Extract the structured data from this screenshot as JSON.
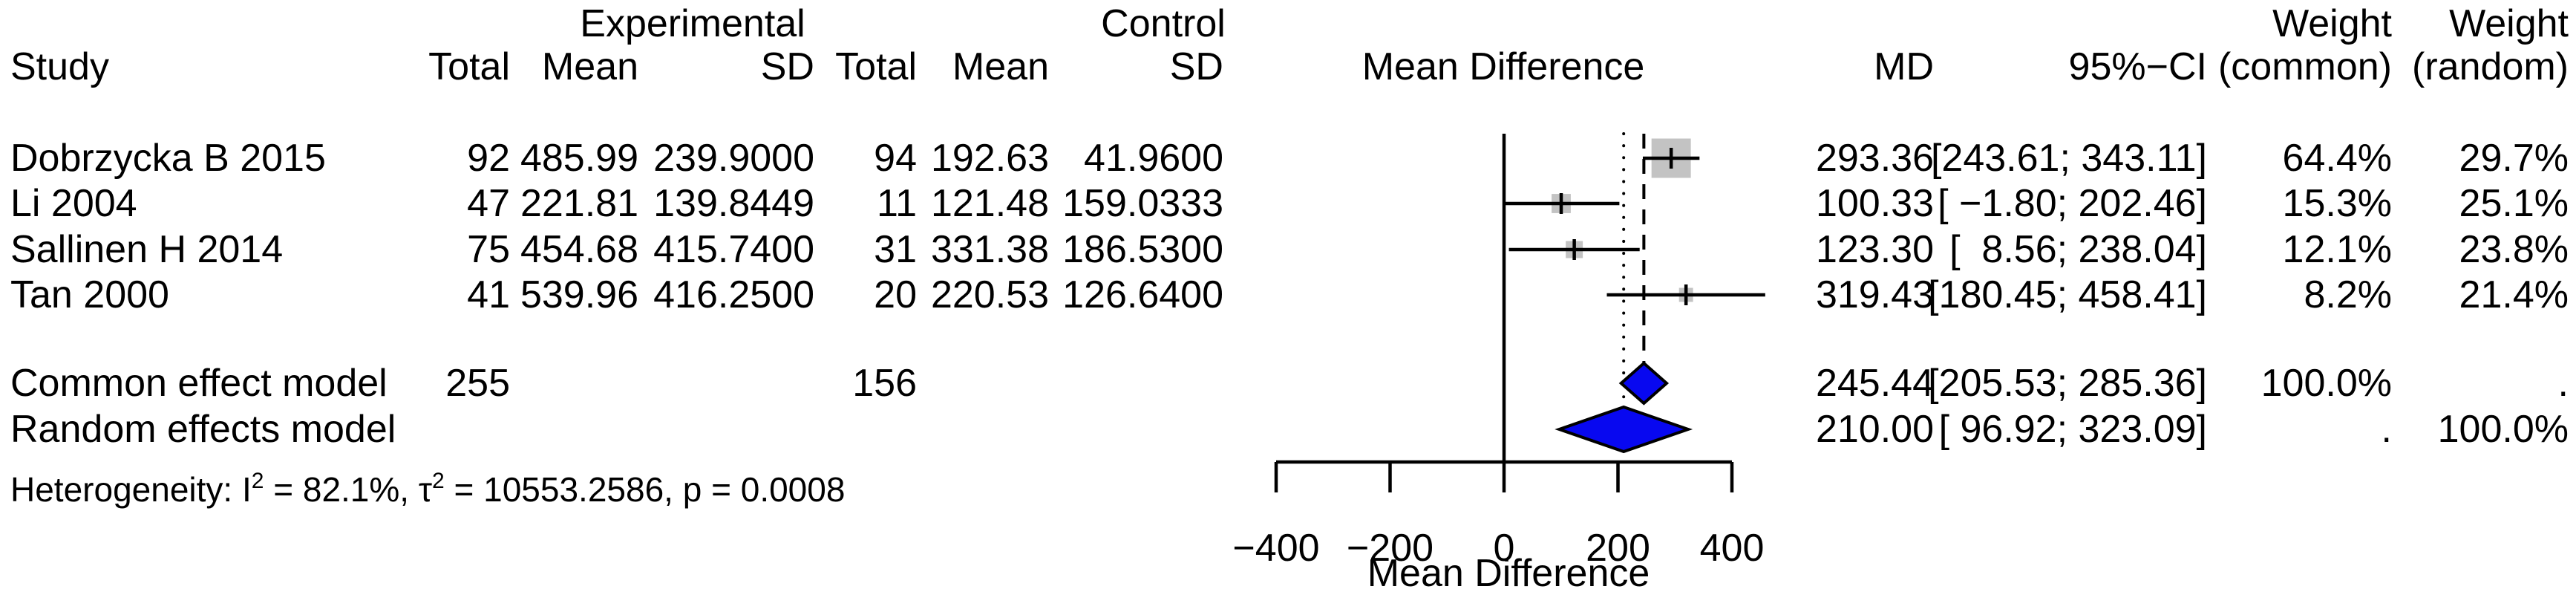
{
  "header": {
    "group_experimental": "Experimental",
    "group_control": "Control",
    "weight_common_top": "Weight",
    "weight_random_top": "Weight",
    "study": "Study",
    "exp_total": "Total",
    "exp_mean": "Mean",
    "exp_sd": "SD",
    "ctrl_total": "Total",
    "ctrl_mean": "Mean",
    "ctrl_sd": "SD",
    "mean_difference": "Mean Difference",
    "md": "MD",
    "ci": "95%−CI",
    "weight_common": "(common)",
    "weight_random": "(random)"
  },
  "table": {
    "studies": [
      {
        "name": "Dobrzycka B 2015",
        "exp_total": "92",
        "exp_mean": "485.99",
        "exp_sd": "239.9000",
        "ctrl_total": "94",
        "ctrl_mean": "192.63",
        "ctrl_sd": "41.9600",
        "md": "293.36",
        "ci": "[243.61; 343.11]",
        "w_common": "64.4%",
        "w_random": "29.7%"
      },
      {
        "name": "Li 2004",
        "exp_total": "47",
        "exp_mean": "221.81",
        "exp_sd": "139.8449",
        "ctrl_total": "11",
        "ctrl_mean": "121.48",
        "ctrl_sd": "159.0333",
        "md": "100.33",
        "ci": "[ −1.80; 202.46]",
        "w_common": "15.3%",
        "w_random": "25.1%"
      },
      {
        "name": "Sallinen H 2014",
        "exp_total": "75",
        "exp_mean": "454.68",
        "exp_sd": "415.7400",
        "ctrl_total": "31",
        "ctrl_mean": "331.38",
        "ctrl_sd": "186.5300",
        "md": "123.30",
        "ci": "[  8.56; 238.04]",
        "w_common": "12.1%",
        "w_random": "23.8%"
      },
      {
        "name": "Tan 2000",
        "exp_total": "41",
        "exp_mean": "539.96",
        "exp_sd": "416.2500",
        "ctrl_total": "20",
        "ctrl_mean": "220.53",
        "ctrl_sd": "126.6400",
        "md": "319.43",
        "ci": "[180.45; 458.41]",
        "w_common": "8.2%",
        "w_random": "21.4%"
      }
    ],
    "pooled": [
      {
        "name": "Common effect model",
        "exp_total": "255",
        "ctrl_total": "156",
        "md": "245.44",
        "ci": "[205.53; 285.36]",
        "w_common": "100.0%",
        "w_random": "."
      },
      {
        "name": "Random effects model",
        "exp_total": "",
        "ctrl_total": "",
        "md": "210.00",
        "ci": "[ 96.92; 323.09]",
        "w_common": ".",
        "w_random": "100.0%"
      }
    ]
  },
  "heterogeneity": {
    "p1": "Heterogeneity: I",
    "sup1": "2",
    "p2": " = 82.1%, τ",
    "sup2": "2",
    "p3": " = 10553.2586, p = 0.0008"
  },
  "chart_data": {
    "type": "forest",
    "xlabel": "Mean Difference",
    "xlim": [
      -400,
      400
    ],
    "axis_ticks": [
      {
        "v": -400,
        "label": "−400"
      },
      {
        "v": -200,
        "label": "−200"
      },
      {
        "v": 0,
        "label": "0"
      },
      {
        "v": 200,
        "label": "200"
      },
      {
        "v": 400,
        "label": "400"
      }
    ],
    "zero_line": 0,
    "reference_lines": {
      "common_dashed": 245.44,
      "random_dotted": 210.0
    },
    "studies": [
      {
        "name": "Dobrzycka B 2015",
        "md": 293.36,
        "lo": 243.61,
        "hi": 343.11,
        "weight_common_pct": 64.4,
        "weight_random_pct": 29.7
      },
      {
        "name": "Li 2004",
        "md": 100.33,
        "lo": -1.8,
        "hi": 202.46,
        "weight_common_pct": 15.3,
        "weight_random_pct": 25.1
      },
      {
        "name": "Sallinen H 2014",
        "md": 123.3,
        "lo": 8.56,
        "hi": 238.04,
        "weight_common_pct": 12.1,
        "weight_random_pct": 23.8
      },
      {
        "name": "Tan 2000",
        "md": 319.43,
        "lo": 180.45,
        "hi": 458.41,
        "weight_common_pct": 8.2,
        "weight_random_pct": 21.4
      }
    ],
    "diamonds": [
      {
        "name": "Common effect model",
        "md": 245.44,
        "lo": 205.53,
        "hi": 285.36
      },
      {
        "name": "Random effects model",
        "md": 210.0,
        "lo": 96.92,
        "hi": 323.09
      }
    ],
    "colors": {
      "square": "#c3c3c3",
      "diamond_fill": "#0808f0",
      "line": "#000000"
    }
  }
}
